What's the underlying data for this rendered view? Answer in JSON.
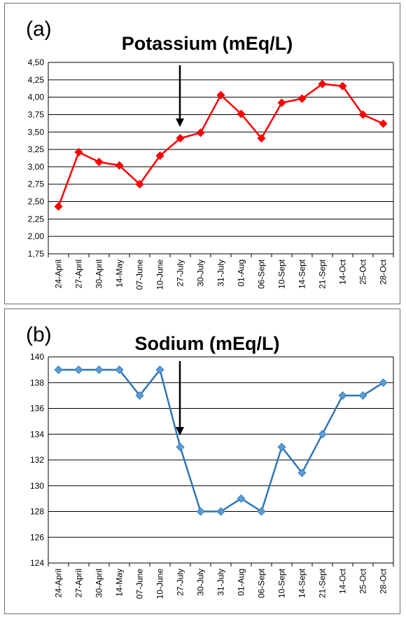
{
  "chart_data": [
    {
      "type": "line",
      "panel_label": "(a)",
      "title": "Potassium (mEq/L)",
      "categories": [
        "24-April",
        "27-April",
        "30-April",
        "14-May",
        "07-June",
        "10-June",
        "27-July",
        "30-July",
        "31-July",
        "01-Aug",
        "06-Sept",
        "10-Sept",
        "14-Sept",
        "21-Sept",
        "14-Oct",
        "25-Oct",
        "28-Oct"
      ],
      "values": [
        2.43,
        3.21,
        3.07,
        3.02,
        2.75,
        3.16,
        3.41,
        3.49,
        4.03,
        3.76,
        3.41,
        3.92,
        3.98,
        4.19,
        4.16,
        3.75,
        3.62
      ],
      "yticks": [
        "1,75",
        "2,00",
        "2,25",
        "2,50",
        "2,75",
        "3,00",
        "3,25",
        "3,50",
        "3,75",
        "4,00",
        "4,25",
        "4,50"
      ],
      "ylim": [
        1.75,
        4.5
      ],
      "grid": true,
      "line_color": "#ff0000",
      "marker": "diamond",
      "arrow_at": "27-July"
    },
    {
      "type": "line",
      "panel_label": "(b)",
      "title": "Sodium (mEq/L)",
      "categories": [
        "24-April",
        "27-April",
        "30-April",
        "14-May",
        "07-June",
        "10-June",
        "27-July",
        "30-July",
        "31-July",
        "01-Aug",
        "06-Sept",
        "10-Sept",
        "14-Sept",
        "21-Sept",
        "14-Oct",
        "25-Oct",
        "28-Oct"
      ],
      "values": [
        139,
        139,
        139,
        139,
        137,
        139,
        133,
        128,
        128,
        129,
        128,
        133,
        131,
        134,
        137,
        137,
        138
      ],
      "yticks": [
        "124",
        "126",
        "128",
        "130",
        "132",
        "134",
        "136",
        "138",
        "140"
      ],
      "ylim": [
        124,
        140
      ],
      "grid": true,
      "line_color": "#2e75b6",
      "marker_color": "#5b9bd5",
      "marker": "diamond",
      "arrow_at": "27-July"
    }
  ]
}
